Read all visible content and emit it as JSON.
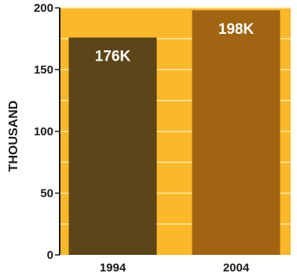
{
  "chart_data": {
    "type": "bar",
    "title": "",
    "xlabel": "",
    "ylabel": "THOUSAND",
    "categories": [
      "1994",
      "2004"
    ],
    "values": [
      176,
      198
    ],
    "data_labels": [
      "176K",
      "198K"
    ],
    "ylim": [
      0,
      200
    ],
    "yticks": [
      0,
      50,
      100,
      150,
      200
    ],
    "grid": true,
    "legend": "none",
    "colors": {
      "background": "#FBB829",
      "gridline": "#FFE9A8",
      "bars": [
        "#5C4619",
        "#A06412"
      ]
    }
  }
}
